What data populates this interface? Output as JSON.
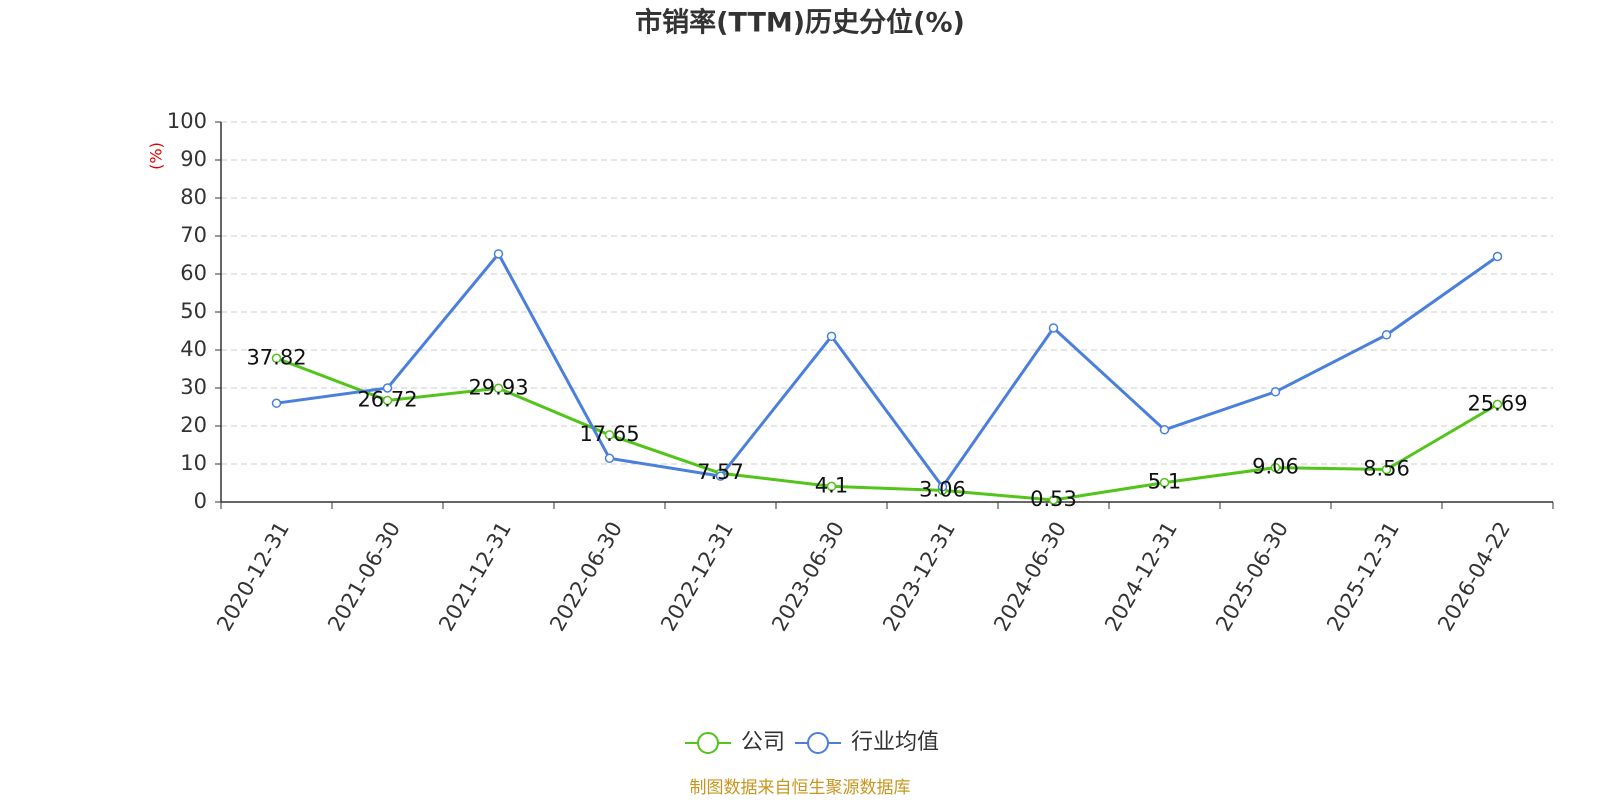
{
  "chart_data": {
    "type": "line",
    "title": "市销率(TTM)历史分位(%)",
    "y_label": "(%)",
    "source": "制图数据来自恒生聚源数据库",
    "categories": [
      "2020-12-31",
      "2021-06-30",
      "2021-12-31",
      "2022-06-30",
      "2022-12-31",
      "2023-06-30",
      "2023-12-31",
      "2024-06-30",
      "2024-12-31",
      "2025-06-30",
      "2025-12-31",
      "2026-04-22"
    ],
    "series": [
      {
        "name": "公司",
        "color": "#52c41a",
        "labels": true,
        "values": [
          37.82,
          26.72,
          29.93,
          17.65,
          7.57,
          4.1,
          3.06,
          0.53,
          5.1,
          9.06,
          8.56,
          25.69
        ]
      },
      {
        "name": "行业均值",
        "color": "#4a7fdc",
        "labels": false,
        "values": [
          26,
          30,
          65.3,
          11.5,
          6.8,
          43.6,
          4,
          45.8,
          19,
          29,
          44,
          64.6
        ]
      }
    ],
    "ylim": [
      0,
      100
    ],
    "yticks": [
      0,
      10,
      20,
      30,
      40,
      50,
      60,
      70,
      80,
      90,
      100
    ],
    "grid": true,
    "legend": "bottom"
  }
}
